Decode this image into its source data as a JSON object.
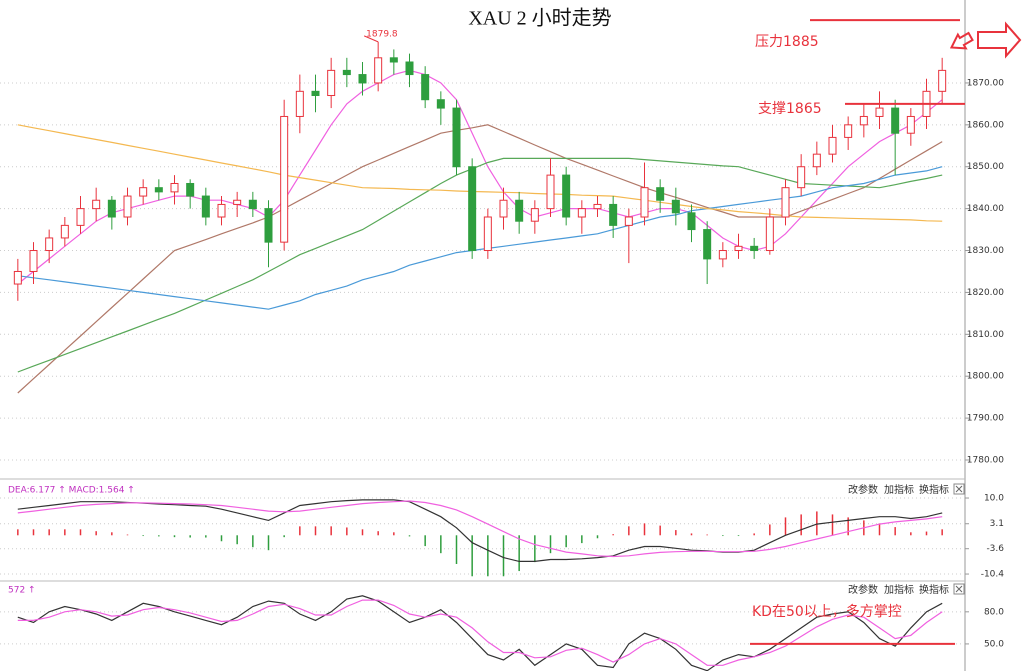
{
  "chart_data": [
    {
      "type": "candlestick",
      "title": "XAU 2 小时走势",
      "up_color": "#e8323c",
      "down_color": "#2e9e3e",
      "open": [
        1822,
        1825,
        1830,
        1833,
        1836,
        1840,
        1842,
        1838,
        1843,
        1845,
        1844,
        1846,
        1843,
        1838,
        1841,
        1842,
        1840,
        1832,
        1862,
        1868,
        1867,
        1873,
        1872,
        1870,
        1876,
        1875,
        1872,
        1866,
        1864,
        1850,
        1830,
        1838,
        1842,
        1837,
        1840,
        1848,
        1838,
        1840,
        1841,
        1836,
        1838,
        1845,
        1842,
        1839,
        1835,
        1828,
        1830,
        1831,
        1830,
        1838,
        1845,
        1850,
        1853,
        1857,
        1860,
        1862,
        1864,
        1858,
        1862,
        1868
      ],
      "high": [
        1828,
        1832,
        1835,
        1838,
        1843,
        1845,
        1843,
        1845,
        1847,
        1847,
        1848,
        1847,
        1845,
        1843,
        1844,
        1844,
        1842,
        1866,
        1872,
        1872,
        1876,
        1876,
        1875,
        1879.8,
        1878,
        1877,
        1874,
        1868,
        1866,
        1852,
        1840,
        1845,
        1844,
        1842,
        1852,
        1850,
        1842,
        1843,
        1843,
        1840,
        1851,
        1847,
        1845,
        1841,
        1837,
        1832,
        1834,
        1833,
        1840,
        1847,
        1853,
        1856,
        1860,
        1862,
        1865,
        1868,
        1866,
        1864,
        1871,
        1876
      ],
      "low": [
        1818,
        1822,
        1827,
        1831,
        1834,
        1837,
        1835,
        1836,
        1841,
        1842,
        1841,
        1840,
        1836,
        1836,
        1838,
        1838,
        1826,
        1830,
        1858,
        1863,
        1864,
        1869,
        1867,
        1868,
        1872,
        1869,
        1864,
        1860,
        1848,
        1828,
        1828,
        1835,
        1834,
        1834,
        1838,
        1836,
        1834,
        1838,
        1833,
        1827,
        1836,
        1839,
        1836,
        1832,
        1822,
        1826,
        1828,
        1828,
        1829,
        1836,
        1843,
        1848,
        1851,
        1854,
        1857,
        1859,
        1848,
        1855,
        1859,
        1865
      ],
      "close": [
        1825,
        1830,
        1833,
        1836,
        1840,
        1842,
        1838,
        1843,
        1845,
        1844,
        1846,
        1843,
        1838,
        1841,
        1842,
        1840,
        1832,
        1862,
        1868,
        1867,
        1873,
        1872,
        1870,
        1876,
        1875,
        1872,
        1866,
        1864,
        1850,
        1830,
        1838,
        1842,
        1837,
        1840,
        1848,
        1838,
        1840,
        1841,
        1836,
        1838,
        1845,
        1842,
        1839,
        1835,
        1828,
        1830,
        1831,
        1830,
        1838,
        1845,
        1850,
        1853,
        1857,
        1860,
        1862,
        1864,
        1858,
        1862,
        1868,
        1873
      ],
      "series": [
        {
          "color": "#f060e0",
          "values": [
            1822,
            1825,
            1828,
            1831,
            1834,
            1837,
            1839,
            1840,
            1841,
            1842,
            1843,
            1843,
            1842,
            1842,
            1841,
            1840,
            1838,
            1842,
            1848,
            1854,
            1860,
            1865,
            1868,
            1870,
            1872,
            1873,
            1872,
            1870,
            1866,
            1858,
            1850,
            1844,
            1840,
            1838,
            1839,
            1840,
            1840,
            1840,
            1839,
            1838,
            1839,
            1840,
            1840,
            1839,
            1836,
            1833,
            1831,
            1830,
            1831,
            1834,
            1838,
            1842,
            1846,
            1850,
            1853,
            1856,
            1858,
            1860,
            1863,
            1866
          ]
        },
        {
          "color": "#b07868",
          "values": [
            1796,
            1799.4,
            1802.8,
            1806.2,
            1809.6,
            1813,
            1816.4,
            1819.8,
            1823.2,
            1826.6,
            1830,
            1831.3,
            1832.6,
            1834,
            1835.3,
            1836.6,
            1838,
            1840,
            1842,
            1844,
            1846,
            1848,
            1850,
            1851.6,
            1853.2,
            1854.8,
            1856.4,
            1858,
            1858.7,
            1859.3,
            1860,
            1858.4,
            1856.8,
            1855.2,
            1853.6,
            1852,
            1850.6,
            1849.2,
            1847.8,
            1846.4,
            1845,
            1843.8,
            1842.7,
            1841.5,
            1840.3,
            1839.2,
            1838,
            1838,
            1838,
            1838,
            1839.4,
            1840.8,
            1842.2,
            1843.6,
            1845,
            1847.2,
            1849.4,
            1851.6,
            1853.8,
            1856
          ]
        },
        {
          "color": "#58a858",
          "values": [
            1801,
            1802.4,
            1803.8,
            1805.2,
            1806.6,
            1808,
            1809.4,
            1810.8,
            1812.2,
            1813.6,
            1815,
            1816.6,
            1818.2,
            1819.8,
            1821.4,
            1823,
            1825,
            1827,
            1829,
            1830.5,
            1832,
            1833.5,
            1835,
            1837.2,
            1839.4,
            1841.6,
            1843.8,
            1846,
            1848,
            1849.5,
            1851,
            1852,
            1852,
            1852,
            1852,
            1852,
            1852,
            1852,
            1852,
            1852,
            1851.7,
            1851.4,
            1851.1,
            1850.8,
            1850.5,
            1850.2,
            1850,
            1849,
            1848,
            1847,
            1846,
            1845.8,
            1845.6,
            1845.4,
            1845.2,
            1845,
            1845.7,
            1846.5,
            1847.2,
            1848
          ]
        },
        {
          "color": "#4a9ad8",
          "values": [
            1824,
            1823.5,
            1823,
            1822.5,
            1822,
            1821.5,
            1821,
            1820.5,
            1820,
            1819.5,
            1819,
            1818.5,
            1818,
            1817.5,
            1817,
            1816.5,
            1816,
            1817,
            1818,
            1819.5,
            1820.5,
            1821.5,
            1823,
            1824,
            1825,
            1826.5,
            1827.5,
            1828.5,
            1829.5,
            1830,
            1830.5,
            1831,
            1831.5,
            1832,
            1832.5,
            1833,
            1833.5,
            1834,
            1835,
            1836,
            1837,
            1838,
            1838.5,
            1839.5,
            1840,
            1840.5,
            1841,
            1841.5,
            1842,
            1842.5,
            1843,
            1844,
            1845,
            1845.5,
            1846,
            1847,
            1848,
            1848.5,
            1849,
            1850
          ]
        },
        {
          "color": "#f4b850",
          "values": [
            1860,
            1859.3,
            1858.6,
            1857.9,
            1857.2,
            1856.5,
            1855.8,
            1855.1,
            1854.4,
            1853.7,
            1853,
            1852.3,
            1851.6,
            1850.9,
            1850.2,
            1849.5,
            1848.8,
            1848,
            1847.4,
            1846.8,
            1846.2,
            1845.6,
            1845,
            1844.9,
            1844.8,
            1844.6,
            1844.5,
            1844.4,
            1844.2,
            1844.1,
            1844,
            1843.9,
            1843.8,
            1843.6,
            1843.5,
            1843.4,
            1843.2,
            1843.1,
            1843,
            1842.5,
            1842,
            1841.5,
            1841,
            1840.5,
            1840,
            1839.7,
            1839.3,
            1839,
            1838.7,
            1838.3,
            1838,
            1837.9,
            1837.8,
            1837.7,
            1837.6,
            1837.5,
            1837.4,
            1837.3,
            1837.1,
            1837
          ]
        }
      ],
      "ylim": [
        1775.7,
        1889.8
      ],
      "yticks": [
        {
          "value": 1780,
          "label": "1780.00"
        },
        {
          "value": 1790,
          "label": "1790.00"
        },
        {
          "value": 1800,
          "label": "1800.00"
        },
        {
          "value": 1810,
          "label": "1810.00"
        },
        {
          "value": 1820,
          "label": "1820.00"
        },
        {
          "value": 1830,
          "label": "1830.00"
        },
        {
          "value": 1840,
          "label": "1840.00"
        },
        {
          "value": 1850,
          "label": "1850.00"
        },
        {
          "value": 1860,
          "label": "1860.00"
        },
        {
          "value": 1870,
          "label": "1870.00"
        }
      ],
      "grid": true,
      "annotations": [
        {
          "text": "压力1885",
          "value": 1885
        },
        {
          "text": "支撑1865",
          "value": 1865
        }
      ]
    },
    {
      "type": "macd",
      "label": "DEA:6.177 ↑ MACD:1.564 ↑",
      "buttons": [
        "改参数",
        "加指标",
        "换指标"
      ],
      "up_color": "#e8323c",
      "down_color": "#2e9e3e",
      "histogram": [
        1.6,
        1.6,
        1.6,
        1.6,
        1.6,
        1.1,
        0.8,
        0.2,
        -0.2,
        -0.3,
        -0.5,
        -0.6,
        -0.6,
        -1.6,
        -2.4,
        -3.2,
        -4,
        -0.5,
        2.4,
        2.4,
        2.4,
        2.1,
        1.6,
        1.1,
        0.8,
        -0.3,
        -2.9,
        -4.8,
        -7.7,
        -11,
        -11,
        -11,
        -9.6,
        -7.2,
        -4.8,
        -3.2,
        -2.1,
        -0.8,
        0.3,
        2.4,
        3.2,
        2.6,
        1.4,
        0.5,
        0.2,
        -0.2,
        -0.2,
        0.5,
        2.9,
        4.8,
        5.6,
        6.4,
        5.6,
        4.8,
        4,
        3.2,
        2.2,
        0.8,
        1,
        1.6
      ],
      "series": [
        {
          "color": "#333333",
          "values": [
            7,
            7.5,
            8,
            8.5,
            9,
            9,
            9,
            8.8,
            8.6,
            8.4,
            8.2,
            8,
            7.8,
            7,
            6,
            5,
            4,
            6,
            8,
            8.5,
            9,
            9.3,
            9.5,
            9.5,
            9.5,
            9,
            7,
            5,
            2,
            -2,
            -4,
            -6,
            -7,
            -7,
            -6.5,
            -6.5,
            -6.3,
            -6,
            -5.5,
            -4,
            -3,
            -3,
            -3.5,
            -4,
            -4.2,
            -4.5,
            -4.5,
            -4,
            -2,
            0,
            1.5,
            3,
            3.5,
            4,
            4.5,
            5,
            5,
            4.5,
            5,
            6
          ]
        },
        {
          "color": "#f060e0",
          "values": [
            6,
            6.5,
            7,
            7.5,
            8,
            8.3,
            8.5,
            8.7,
            8.7,
            8.6,
            8.5,
            8.4,
            8.2,
            8,
            7.5,
            7,
            6.5,
            6.3,
            6.5,
            7,
            7.5,
            8,
            8.5,
            8.8,
            9,
            9.2,
            8.8,
            8,
            6.8,
            5,
            3,
            1,
            -1,
            -2.5,
            -3.5,
            -4.5,
            -5,
            -5.5,
            -5.7,
            -5.5,
            -5,
            -4.6,
            -4.4,
            -4.3,
            -4.3,
            -4.4,
            -4.4,
            -4.3,
            -3.8,
            -3,
            -2,
            -1,
            0,
            1,
            2,
            3,
            3.6,
            4,
            4.4,
            5
          ]
        }
      ],
      "ylim": [
        -12,
        14.3
      ],
      "yticks": [
        {
          "value": 10,
          "label": "10.0"
        },
        3.1,
        -3.6,
        -10.4
      ]
    },
    {
      "type": "kd",
      "label": "572 ↑",
      "buttons": [
        "改参数",
        "加指标",
        "换指标"
      ],
      "series": [
        {
          "color": "#333333",
          "values": [
            75,
            70,
            80,
            85,
            82,
            78,
            72,
            80,
            88,
            85,
            80,
            76,
            72,
            68,
            75,
            85,
            90,
            88,
            78,
            72,
            80,
            92,
            95,
            90,
            80,
            70,
            75,
            82,
            70,
            55,
            40,
            35,
            45,
            30,
            40,
            50,
            45,
            30,
            28,
            50,
            60,
            55,
            45,
            30,
            25,
            35,
            40,
            38,
            45,
            55,
            65,
            75,
            78,
            80,
            70,
            55,
            48,
            65,
            80,
            88
          ]
        },
        {
          "color": "#f060e0",
          "values": [
            72,
            72,
            75,
            80,
            82,
            80,
            76,
            77,
            82,
            84,
            82,
            79,
            75,
            71,
            72,
            78,
            85,
            87,
            83,
            77,
            77,
            85,
            91,
            91,
            86,
            78,
            75,
            78,
            75,
            65,
            52,
            42,
            42,
            37,
            38,
            44,
            46,
            40,
            33,
            40,
            50,
            55,
            50,
            40,
            30,
            30,
            35,
            38,
            42,
            48,
            57,
            66,
            73,
            77,
            75,
            65,
            55,
            58,
            70,
            80
          ]
        }
      ],
      "ylim": [
        24.7,
        106
      ],
      "yticks": [
        {
          "value": 50,
          "label": "50.0"
        },
        {
          "value": 80,
          "label": "80.0"
        }
      ],
      "annotations": [
        {
          "text": "KD在50以上，多方掌控",
          "value": 50
        }
      ]
    }
  ]
}
